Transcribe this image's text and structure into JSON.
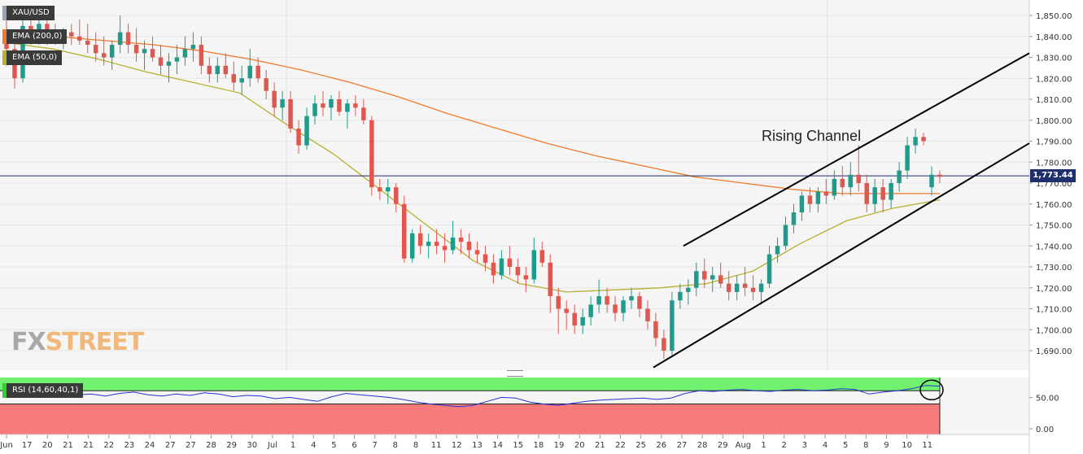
{
  "instrument": "XAU/USD",
  "indicators": {
    "ema200_label": "EMA (200,0)",
    "ema50_label": "EMA (50,0)",
    "rsi_label": "RSI (14,60,40,1)"
  },
  "last_price_label": "1,773.44",
  "annotation": "Rising Channel",
  "watermark": {
    "fx": "FX",
    "street": "STREET"
  },
  "colors": {
    "bull": "#1f9b8c",
    "bear": "#e0574f",
    "ema200": "#f07a2a",
    "ema50": "#b7b030",
    "rsi_line": "#2433d6",
    "rsi_high_zone": "#72f070",
    "rsi_low_zone": "#f77b7b",
    "price_line": "#1f2f6b"
  },
  "chart_data": [
    {
      "type": "candlestick",
      "title": "XAU/USD",
      "x_ticks": [
        "Jun",
        "17",
        "20",
        "21",
        "21",
        "22",
        "23",
        "24",
        "27",
        "27",
        "28",
        "29",
        "30",
        "Jul",
        "1",
        "4",
        "5",
        "6",
        "7",
        "8",
        "8",
        "11",
        "12",
        "13",
        "14",
        "15",
        "18",
        "19",
        "20",
        "21",
        "22",
        "25",
        "26",
        "27",
        "28",
        "29",
        "Aug",
        "1",
        "2",
        "3",
        "4",
        "5",
        "8",
        "9",
        "10",
        "11"
      ],
      "y_ticks": [
        "1,850.00",
        "1,840.00",
        "1,830.00",
        "1,820.00",
        "1,810.00",
        "1,800.00",
        "1,790.00",
        "1,780.00",
        "1,770.00",
        "1,760.00",
        "1,750.00",
        "1,740.00",
        "1,730.00",
        "1,720.00",
        "1,710.00",
        "1,700.00",
        "1,690.00"
      ],
      "ylim": [
        1682,
        1857
      ],
      "last_price": 1773.44,
      "candles": [
        [
          1840,
          1848,
          1826,
          1834
        ],
        [
          1834,
          1838,
          1815,
          1820
        ],
        [
          1820,
          1850,
          1818,
          1845
        ],
        [
          1845,
          1850,
          1836,
          1840
        ],
        [
          1840,
          1852,
          1836,
          1846
        ],
        [
          1846,
          1850,
          1836,
          1840
        ],
        [
          1840,
          1846,
          1836,
          1838
        ],
        [
          1838,
          1844,
          1834,
          1842
        ],
        [
          1842,
          1846,
          1836,
          1840
        ],
        [
          1840,
          1848,
          1836,
          1838
        ],
        [
          1838,
          1846,
          1832,
          1836
        ],
        [
          1836,
          1842,
          1828,
          1832
        ],
        [
          1832,
          1840,
          1826,
          1830
        ],
        [
          1830,
          1838,
          1824,
          1836
        ],
        [
          1836,
          1850,
          1832,
          1842
        ],
        [
          1842,
          1846,
          1832,
          1836
        ],
        [
          1836,
          1844,
          1828,
          1832
        ],
        [
          1832,
          1838,
          1824,
          1834
        ],
        [
          1834,
          1840,
          1828,
          1830
        ],
        [
          1830,
          1836,
          1822,
          1826
        ],
        [
          1826,
          1832,
          1818,
          1828
        ],
        [
          1828,
          1836,
          1822,
          1830
        ],
        [
          1830,
          1840,
          1826,
          1834
        ],
        [
          1834,
          1842,
          1828,
          1836
        ],
        [
          1836,
          1840,
          1822,
          1826
        ],
        [
          1826,
          1830,
          1818,
          1822
        ],
        [
          1822,
          1830,
          1818,
          1826
        ],
        [
          1826,
          1832,
          1820,
          1822
        ],
        [
          1822,
          1828,
          1814,
          1818
        ],
        [
          1818,
          1826,
          1812,
          1820
        ],
        [
          1820,
          1834,
          1816,
          1826
        ],
        [
          1826,
          1830,
          1818,
          1820
        ],
        [
          1820,
          1824,
          1810,
          1814
        ],
        [
          1814,
          1818,
          1802,
          1806
        ],
        [
          1806,
          1814,
          1800,
          1810
        ],
        [
          1810,
          1814,
          1794,
          1796
        ],
        [
          1796,
          1800,
          1784,
          1788
        ],
        [
          1788,
          1806,
          1786,
          1802
        ],
        [
          1802,
          1812,
          1798,
          1808
        ],
        [
          1808,
          1814,
          1802,
          1806
        ],
        [
          1806,
          1812,
          1800,
          1810
        ],
        [
          1810,
          1814,
          1802,
          1804
        ],
        [
          1804,
          1810,
          1796,
          1808
        ],
        [
          1808,
          1812,
          1802,
          1806
        ],
        [
          1806,
          1810,
          1798,
          1800
        ],
        [
          1800,
          1802,
          1764,
          1768
        ],
        [
          1768,
          1772,
          1762,
          1766
        ],
        [
          1766,
          1772,
          1760,
          1768
        ],
        [
          1768,
          1770,
          1756,
          1760
        ],
        [
          1760,
          1764,
          1732,
          1734
        ],
        [
          1734,
          1748,
          1732,
          1746
        ],
        [
          1746,
          1750,
          1736,
          1740
        ],
        [
          1740,
          1746,
          1734,
          1742
        ],
        [
          1742,
          1748,
          1736,
          1740
        ],
        [
          1740,
          1746,
          1732,
          1738
        ],
        [
          1738,
          1752,
          1736,
          1744
        ],
        [
          1744,
          1748,
          1736,
          1742
        ],
        [
          1742,
          1746,
          1734,
          1738
        ],
        [
          1738,
          1742,
          1732,
          1736
        ],
        [
          1736,
          1740,
          1728,
          1732
        ],
        [
          1732,
          1736,
          1722,
          1726
        ],
        [
          1726,
          1738,
          1724,
          1734
        ],
        [
          1734,
          1740,
          1726,
          1730
        ],
        [
          1730,
          1734,
          1722,
          1726
        ],
        [
          1726,
          1730,
          1718,
          1724
        ],
        [
          1724,
          1744,
          1722,
          1738
        ],
        [
          1738,
          1742,
          1730,
          1732
        ],
        [
          1732,
          1736,
          1708,
          1716
        ],
        [
          1716,
          1720,
          1698,
          1710
        ],
        [
          1710,
          1714,
          1700,
          1708
        ],
        [
          1708,
          1712,
          1698,
          1702
        ],
        [
          1702,
          1710,
          1698,
          1706
        ],
        [
          1706,
          1716,
          1702,
          1712
        ],
        [
          1712,
          1724,
          1708,
          1716
        ],
        [
          1716,
          1720,
          1708,
          1712
        ],
        [
          1712,
          1716,
          1704,
          1708
        ],
        [
          1708,
          1716,
          1704,
          1714
        ],
        [
          1714,
          1720,
          1710,
          1716
        ],
        [
          1716,
          1718,
          1706,
          1710
        ],
        [
          1710,
          1714,
          1700,
          1704
        ],
        [
          1704,
          1708,
          1692,
          1696
        ],
        [
          1696,
          1700,
          1686,
          1690
        ],
        [
          1690,
          1718,
          1688,
          1714
        ],
        [
          1714,
          1722,
          1710,
          1718
        ],
        [
          1718,
          1724,
          1712,
          1720
        ],
        [
          1720,
          1732,
          1716,
          1728
        ],
        [
          1728,
          1734,
          1720,
          1724
        ],
        [
          1724,
          1730,
          1718,
          1726
        ],
        [
          1726,
          1732,
          1720,
          1722
        ],
        [
          1722,
          1728,
          1714,
          1718
        ],
        [
          1718,
          1726,
          1714,
          1722
        ],
        [
          1722,
          1730,
          1716,
          1720
        ],
        [
          1720,
          1726,
          1714,
          1718
        ],
        [
          1718,
          1724,
          1712,
          1722
        ],
        [
          1722,
          1740,
          1720,
          1736
        ],
        [
          1736,
          1744,
          1732,
          1740
        ],
        [
          1740,
          1754,
          1738,
          1750
        ],
        [
          1750,
          1760,
          1746,
          1756
        ],
        [
          1756,
          1766,
          1752,
          1764
        ],
        [
          1764,
          1768,
          1756,
          1760
        ],
        [
          1760,
          1768,
          1756,
          1766
        ],
        [
          1766,
          1772,
          1760,
          1764
        ],
        [
          1764,
          1776,
          1762,
          1772
        ],
        [
          1772,
          1778,
          1764,
          1768
        ],
        [
          1768,
          1780,
          1764,
          1774
        ],
        [
          1774,
          1788,
          1766,
          1770
        ],
        [
          1770,
          1774,
          1756,
          1760
        ],
        [
          1760,
          1772,
          1756,
          1768
        ],
        [
          1768,
          1772,
          1756,
          1762
        ],
        [
          1762,
          1772,
          1758,
          1770
        ],
        [
          1770,
          1780,
          1766,
          1776
        ],
        [
          1776,
          1792,
          1772,
          1788
        ],
        [
          1788,
          1796,
          1784,
          1792
        ],
        [
          1792,
          1794,
          1788,
          1790
        ],
        [
          1768,
          1778,
          1764,
          1774
        ],
        [
          1774,
          1776,
          1770,
          1773
        ]
      ],
      "ema200": [
        1841,
        1840,
        1838,
        1836,
        1833,
        1829,
        1824,
        1818,
        1811,
        1803,
        1796,
        1789,
        1783,
        1778,
        1773,
        1770,
        1767,
        1765,
        1765,
        1765
      ],
      "ema50": [
        1837,
        1834,
        1829,
        1823,
        1818,
        1813,
        1798,
        1784,
        1767,
        1750,
        1733,
        1722,
        1718,
        1719,
        1720,
        1722,
        1728,
        1741,
        1752,
        1758,
        1762
      ],
      "channel_lines": [
        [
          1682,
          1820
        ],
        [
          1740,
          1832
        ]
      ],
      "rsi": {
        "label": "RSI (14,60,40,1)",
        "y_ticks": [
          "50.00",
          "0.00"
        ],
        "ylim": [
          0,
          80
        ],
        "levels": [
          60,
          40
        ],
        "values": [
          56,
          58,
          55,
          60,
          57,
          54,
          55,
          52,
          56,
          58,
          54,
          52,
          55,
          53,
          57,
          55,
          51,
          53,
          52,
          48,
          50,
          47,
          44,
          51,
          56,
          54,
          52,
          50,
          47,
          43,
          40,
          38,
          36,
          38,
          44,
          50,
          49,
          43,
          40,
          38,
          41,
          44,
          46,
          47,
          48,
          49,
          47,
          49,
          56,
          60,
          59,
          61,
          62,
          60,
          59,
          61,
          62,
          60,
          61,
          63,
          62,
          55,
          58,
          60,
          63,
          68,
          67
        ]
      }
    }
  ]
}
